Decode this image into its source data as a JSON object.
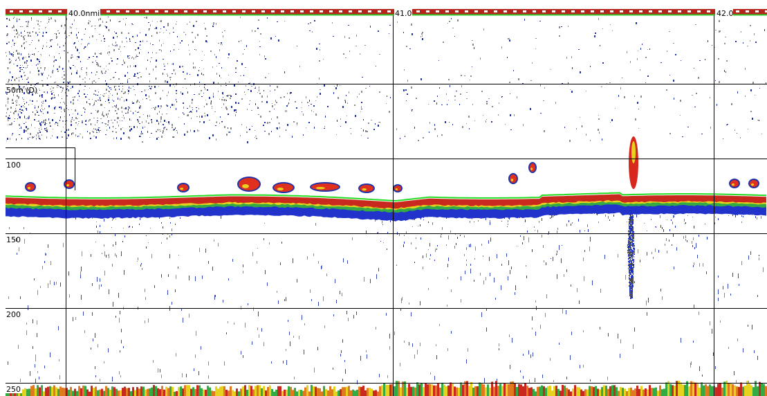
{
  "distance_markers": [
    "40.0nmi",
    "41.0",
    "42.0"
  ],
  "depth_markers": [
    "50m (D)",
    "100",
    "150",
    "200",
    "250"
  ]
}
